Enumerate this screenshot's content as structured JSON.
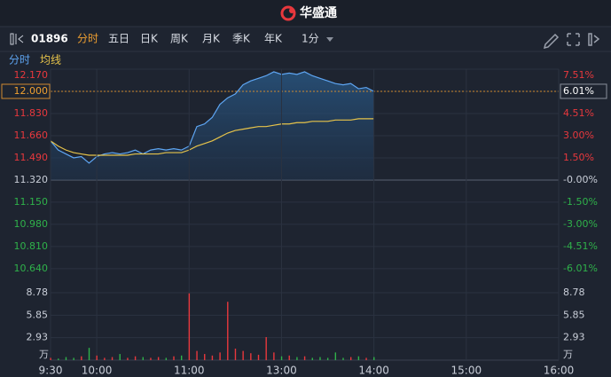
{
  "header": {
    "title": "华盛通"
  },
  "toolbar": {
    "code": "01896",
    "tabs": [
      "分时",
      "五日",
      "日K",
      "周K",
      "月K",
      "季K",
      "年K"
    ],
    "period": "1分"
  },
  "chart_data": [
    {
      "type": "line",
      "x": [
        0,
        5,
        10,
        15,
        20,
        25,
        30,
        35,
        40,
        45,
        50,
        55,
        60,
        65,
        70,
        75,
        80,
        85,
        90,
        95,
        100,
        105,
        110,
        115,
        120,
        125,
        130,
        135,
        140,
        145,
        150,
        155,
        160,
        165,
        170,
        175,
        180,
        185,
        190,
        195,
        200,
        205,
        210
      ],
      "series": [
        {
          "name": "分时",
          "color": "#5ea5f2",
          "values": [
            11.62,
            11.55,
            11.52,
            11.49,
            11.5,
            11.45,
            11.5,
            11.52,
            11.53,
            11.52,
            11.53,
            11.55,
            11.52,
            11.55,
            11.56,
            11.55,
            11.56,
            11.55,
            11.58,
            11.73,
            11.75,
            11.8,
            11.9,
            11.95,
            11.98,
            12.05,
            12.08,
            12.1,
            12.12,
            12.15,
            12.13,
            12.14,
            12.13,
            12.15,
            12.12,
            12.1,
            12.08,
            12.06,
            12.05,
            12.06,
            12.02,
            12.03,
            12.0
          ]
        },
        {
          "name": "均线",
          "color": "#e6c34a",
          "values": [
            11.62,
            11.58,
            11.55,
            11.53,
            11.52,
            11.51,
            11.51,
            11.51,
            11.51,
            11.51,
            11.51,
            11.52,
            11.52,
            11.52,
            11.52,
            11.53,
            11.53,
            11.53,
            11.55,
            11.58,
            11.6,
            11.62,
            11.65,
            11.68,
            11.7,
            11.71,
            11.72,
            11.73,
            11.73,
            11.74,
            11.75,
            11.75,
            11.76,
            11.76,
            11.77,
            11.77,
            11.77,
            11.78,
            11.78,
            11.78,
            11.79,
            11.79,
            11.79
          ]
        }
      ],
      "xlim": [
        0,
        330
      ],
      "ylim": [
        10.51,
        12.17
      ],
      "yticks": [
        {
          "value": 12.17,
          "label": "12.170"
        },
        {
          "value": 12.0,
          "label": "12.000"
        },
        {
          "value": 11.83,
          "label": "11.830"
        },
        {
          "value": 11.66,
          "label": "11.660"
        },
        {
          "value": 11.49,
          "label": "11.490"
        },
        {
          "value": 11.32,
          "label": "11.320"
        },
        {
          "value": 11.15,
          "label": "11.150"
        },
        {
          "value": 10.98,
          "label": "10.980"
        },
        {
          "value": 10.81,
          "label": "10.810"
        },
        {
          "value": 10.64,
          "label": "10.640"
        }
      ],
      "y2lim": [
        -7.16,
        7.51
      ],
      "y2ticks": [
        {
          "value": 7.51,
          "label": "7.51%"
        },
        {
          "value": 6.01,
          "label": "6.01%"
        },
        {
          "value": 4.51,
          "label": "4.51%"
        },
        {
          "value": 3.0,
          "label": "3.00%"
        },
        {
          "value": 1.5,
          "label": "1.50%"
        },
        {
          "value": 0,
          "label": "-0.00%"
        },
        {
          "value": -1.5,
          "label": "-1.50%"
        },
        {
          "value": -3.0,
          "label": "-3.00%"
        },
        {
          "value": -4.51,
          "label": "-4.51%"
        },
        {
          "value": -6.01,
          "label": "-6.01%"
        }
      ],
      "grid": true
    },
    {
      "type": "volume",
      "x": [
        0,
        5,
        10,
        15,
        20,
        25,
        30,
        35,
        40,
        45,
        50,
        55,
        60,
        65,
        70,
        75,
        80,
        85,
        90,
        95,
        100,
        105,
        110,
        115,
        120,
        125,
        130,
        135,
        140,
        145,
        150,
        155,
        160,
        165,
        170,
        175,
        180,
        185,
        190,
        195,
        200,
        205,
        210
      ],
      "values": [
        0.3,
        0.2,
        0.4,
        0.3,
        0.5,
        1.6,
        0.6,
        0.3,
        0.4,
        0.8,
        0.3,
        0.5,
        0.4,
        0.3,
        0.4,
        0.3,
        0.5,
        0.6,
        8.7,
        1.2,
        0.8,
        0.6,
        1.0,
        7.6,
        1.5,
        1.2,
        0.9,
        0.7,
        3.0,
        1.0,
        0.5,
        0.6,
        0.4,
        0.5,
        0.3,
        0.4,
        0.3,
        1.0,
        0.3,
        0.4,
        0.5,
        0.3,
        0.4
      ],
      "up_color": "#e8383d",
      "down_color": "#2fb24a",
      "xlim": [
        0,
        330
      ],
      "xticks": [
        {
          "value": 0,
          "label": "9:30"
        },
        {
          "value": 30,
          "label": "10:00"
        },
        {
          "value": 90,
          "label": "11:00"
        },
        {
          "value": 150,
          "label": "13:00"
        },
        {
          "value": 210,
          "label": "14:00"
        },
        {
          "value": 270,
          "label": "15:00"
        },
        {
          "value": 330,
          "label": "16:00"
        }
      ],
      "ylim": [
        0,
        8.78
      ],
      "yticks": [
        2.93,
        5.85,
        8.78
      ],
      "unit": "万"
    }
  ]
}
